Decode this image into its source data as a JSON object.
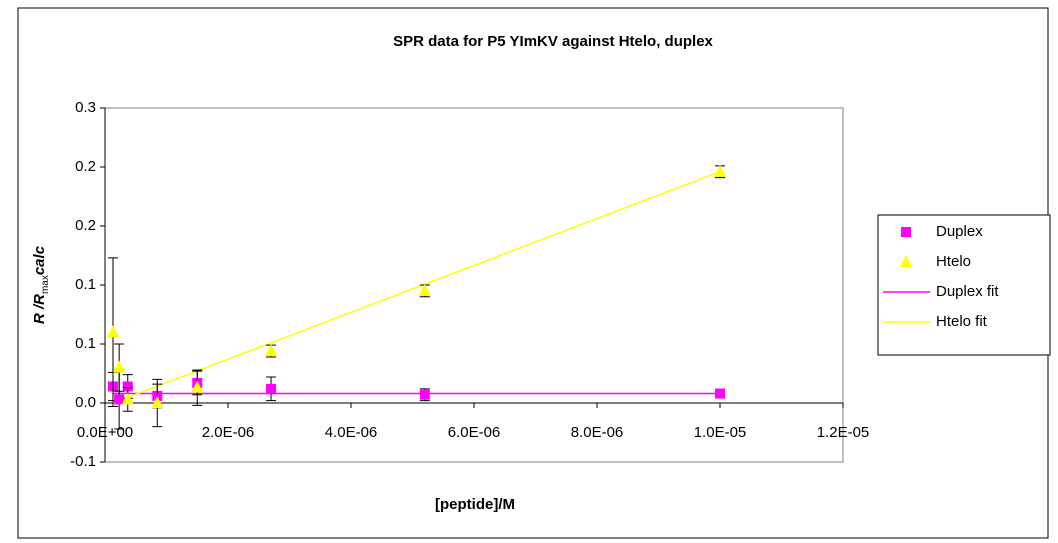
{
  "chart_data": {
    "type": "scatter",
    "title": "SPR data for P5 YImKV against Htelo, duplex",
    "x_label": "[peptide]/M",
    "y_label": {
      "main": "R /R",
      "sub": "max",
      "tail": "calc"
    },
    "xlim": [
      0,
      1.2e-05
    ],
    "xticks": [
      {
        "value": 0,
        "label": "0.0E+00"
      },
      {
        "value": 2e-06,
        "label": "2.0E-06"
      },
      {
        "value": 4e-06,
        "label": "4.0E-06"
      },
      {
        "value": 6e-06,
        "label": "6.0E-06"
      },
      {
        "value": 8e-06,
        "label": "8.0E-06"
      },
      {
        "value": 1e-05,
        "label": "1.0E-05"
      },
      {
        "value": 1.2e-05,
        "label": "1.2E-05"
      }
    ],
    "ylim": [
      -0.05,
      0.25
    ],
    "yticks": [
      {
        "value": -0.05,
        "label": "-0.1"
      },
      {
        "value": 0,
        "label": "0.0"
      },
      {
        "value": 0.05,
        "label": "0.1"
      },
      {
        "value": 0.1,
        "label": "0.1"
      },
      {
        "value": 0.15,
        "label": "0.2"
      },
      {
        "value": 0.2,
        "label": "0.2"
      },
      {
        "value": 0.25,
        "label": "0.3"
      }
    ],
    "legend": "right",
    "series": [
      {
        "name": "Duplex",
        "color": "#ff00ff",
        "marker": "square",
        "x": [
          1.3e-07,
          2.3e-07,
          3.7e-07,
          8.5e-07,
          1.5e-06,
          2.7e-06,
          5.2e-06,
          1e-05
        ],
        "values": [
          0.014,
          0.003,
          0.014,
          0.006,
          0.017,
          0.012,
          0.007,
          0.008
        ],
        "errors": [
          0.012,
          0.025,
          0.01,
          0.01,
          0.01,
          0.01,
          0.005,
          0.003
        ]
      },
      {
        "name": "Htelo",
        "color": "#ffff00",
        "marker": "triangle",
        "x": [
          1.3e-07,
          2.3e-07,
          3.7e-07,
          8.5e-07,
          1.5e-06,
          2.7e-06,
          5.2e-06,
          1e-05
        ],
        "values": [
          0.06,
          0.03,
          0.003,
          0.0,
          0.013,
          0.044,
          0.095,
          0.196
        ],
        "errors": [
          0.063,
          0.02,
          0.01,
          0.02,
          0.015,
          0.005,
          0.005,
          0.005
        ]
      },
      {
        "name": "Duplex fit",
        "color": "#ff00ff",
        "marker": "line",
        "x": [
          1.3e-07,
          1e-05
        ],
        "values": [
          0.008,
          0.008
        ]
      },
      {
        "name": "Htelo fit",
        "color": "#ffff00",
        "marker": "line",
        "x": [
          1.3e-07,
          1e-05
        ],
        "values": [
          0.0,
          0.196
        ]
      }
    ]
  }
}
